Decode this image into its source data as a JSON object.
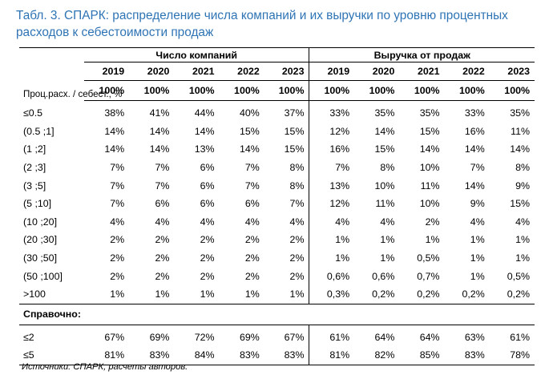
{
  "title": "Табл. 3. СПАРК: распределение числа компаний и их выручки по уровню процентных расходов к себестоимости продаж",
  "groups": [
    "Число компаний",
    "Выручка от продаж"
  ],
  "row_header": "Проц.расх. / себест., %",
  "years": [
    "2019",
    "2020",
    "2021",
    "2022",
    "2023",
    "2019",
    "2020",
    "2021",
    "2022",
    "2023"
  ],
  "totals": [
    "100%",
    "100%",
    "100%",
    "100%",
    "100%",
    "100%",
    "100%",
    "100%",
    "100%",
    "100%"
  ],
  "rows": [
    {
      "label": "≤0.5",
      "values": [
        "38%",
        "41%",
        "44%",
        "40%",
        "37%",
        "33%",
        "35%",
        "35%",
        "33%",
        "35%"
      ]
    },
    {
      "label": "(0.5 ;1]",
      "values": [
        "14%",
        "14%",
        "14%",
        "15%",
        "15%",
        "12%",
        "14%",
        "15%",
        "16%",
        "11%"
      ]
    },
    {
      "label": "(1 ;2]",
      "values": [
        "14%",
        "14%",
        "13%",
        "14%",
        "15%",
        "16%",
        "15%",
        "14%",
        "14%",
        "14%"
      ]
    },
    {
      "label": "(2 ;3]",
      "values": [
        "7%",
        "7%",
        "6%",
        "7%",
        "8%",
        "7%",
        "8%",
        "10%",
        "7%",
        "8%"
      ]
    },
    {
      "label": "(3 ;5]",
      "values": [
        "7%",
        "7%",
        "6%",
        "7%",
        "8%",
        "13%",
        "10%",
        "11%",
        "14%",
        "9%"
      ]
    },
    {
      "label": "(5 ;10]",
      "values": [
        "7%",
        "6%",
        "6%",
        "6%",
        "7%",
        "12%",
        "11%",
        "10%",
        "9%",
        "15%"
      ]
    },
    {
      "label": "(10 ;20]",
      "values": [
        "4%",
        "4%",
        "4%",
        "4%",
        "4%",
        "4%",
        "4%",
        "2%",
        "4%",
        "4%"
      ]
    },
    {
      "label": "(20 ;30]",
      "values": [
        "2%",
        "2%",
        "2%",
        "2%",
        "2%",
        "1%",
        "1%",
        "1%",
        "1%",
        "1%"
      ]
    },
    {
      "label": "(30 ;50]",
      "values": [
        "2%",
        "2%",
        "2%",
        "2%",
        "2%",
        "1%",
        "1%",
        "0,5%",
        "1%",
        "1%"
      ]
    },
    {
      "label": "(50 ;100]",
      "values": [
        "2%",
        "2%",
        "2%",
        "2%",
        "2%",
        "0,6%",
        "0,6%",
        "0,7%",
        "1%",
        "0,5%"
      ]
    },
    {
      "label": ">100",
      "values": [
        "1%",
        "1%",
        "1%",
        "1%",
        "1%",
        "0,3%",
        "0,2%",
        "0,2%",
        "0,2%",
        "0,2%"
      ]
    }
  ],
  "reference_label": "Справочно:",
  "reference_rows": [
    {
      "label": "≤2",
      "values": [
        "67%",
        "69%",
        "72%",
        "69%",
        "67%",
        "61%",
        "64%",
        "64%",
        "63%",
        "61%"
      ]
    },
    {
      "label": "≤5",
      "values": [
        "81%",
        "83%",
        "84%",
        "83%",
        "83%",
        "81%",
        "82%",
        "85%",
        "83%",
        "78%"
      ]
    }
  ],
  "source": "Источники: СПАРК, расчеты авторов."
}
